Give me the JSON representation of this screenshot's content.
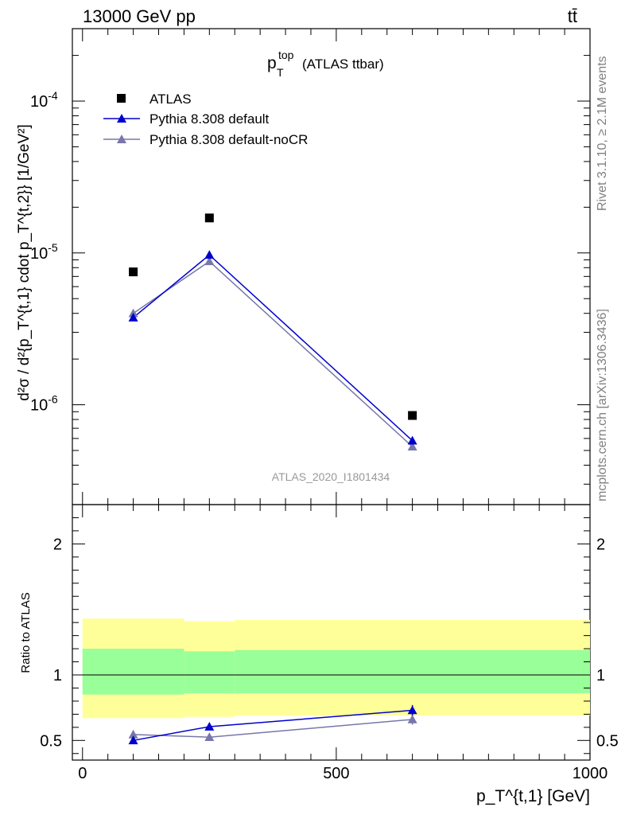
{
  "header": {
    "energy_label": "13000 GeV pp",
    "process_label": "tt̄"
  },
  "side_labels": {
    "rivet": "Rivet 3.1.10, ≥ 2.1M events",
    "mcplots": "mcplots.cern.ch [arXiv:1306.3436]"
  },
  "title": {
    "main": "p",
    "sup": "top",
    "sub": "T",
    "suffix": "(ATLAS ttbar)"
  },
  "analysis_id": "ATLAS_2020_I1801434",
  "y_axis_label_upper": "d²σ / d²{p_T^{t,1} cdot p_T^{t,2}} [1/GeV²]",
  "y_axis_label_lower": "Ratio to ATLAS",
  "x_axis_label": "p_T^{t,1} [GeV]",
  "colors": {
    "data": "#000000",
    "pythia_default": "#0000cc",
    "pythia_nocr": "#7777aa",
    "band_outer": "#ffff99",
    "band_inner": "#99ff99"
  },
  "chart_data": [
    {
      "type": "scatter",
      "panel": "main",
      "yscale": "log",
      "xlim": [
        -20,
        1000
      ],
      "ylim": [
        2.2e-07,
        0.0003
      ],
      "y_tick_labels": [
        "10^-6",
        "10^-5",
        "10^-4"
      ],
      "legend_position": "top-left",
      "series": [
        {
          "name": "ATLAS",
          "marker": "square",
          "x": [
            100,
            250,
            650
          ],
          "y": [
            7.5e-06,
            1.7e-05,
            8.5e-07
          ]
        },
        {
          "name": "Pythia 8.308 default",
          "marker": "triangle",
          "line": true,
          "x": [
            100,
            250,
            650
          ],
          "y": [
            3.75e-06,
            9.7e-06,
            5.8e-07
          ]
        },
        {
          "name": "Pythia 8.308 default-noCR",
          "marker": "triangle",
          "line": true,
          "x": [
            100,
            250,
            650
          ],
          "y": [
            4e-06,
            8.8e-06,
            5.3e-07
          ]
        }
      ]
    },
    {
      "type": "line",
      "panel": "ratio",
      "xlim": [
        -20,
        1000
      ],
      "ylim": [
        0.35,
        2.3
      ],
      "x_tick_labels": [
        "0",
        "500",
        "1000"
      ],
      "y_tick_labels": [
        "0.5",
        "1",
        "2"
      ],
      "reference_line": 1,
      "bands": [
        {
          "x_from": 0,
          "x_to": 200,
          "outer": [
            0.67,
            1.43
          ],
          "inner": [
            0.85,
            1.2
          ]
        },
        {
          "x_from": 200,
          "x_to": 300,
          "outer": [
            0.68,
            1.41
          ],
          "inner": [
            0.86,
            1.18
          ]
        },
        {
          "x_from": 300,
          "x_to": 1000,
          "outer": [
            0.69,
            1.42
          ],
          "inner": [
            0.86,
            1.19
          ]
        }
      ],
      "series": [
        {
          "name": "Pythia 8.308 default",
          "x": [
            100,
            250,
            650
          ],
          "y": [
            0.5,
            0.605,
            0.73
          ],
          "err": [
            0.02,
            0.025,
            0.04
          ]
        },
        {
          "name": "Pythia 8.308 default-noCR",
          "x": [
            100,
            250,
            650
          ],
          "y": [
            0.545,
            0.525,
            0.66
          ],
          "err": [
            0.025,
            0.02,
            0.04
          ]
        }
      ]
    }
  ]
}
